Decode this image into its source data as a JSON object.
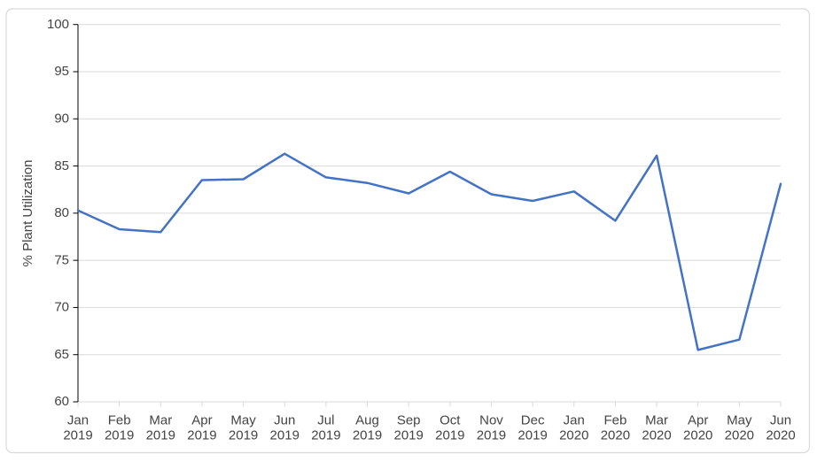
{
  "figure": {
    "background": "#FFFFFF",
    "border_color": "#D9D9D9"
  },
  "chart_data": {
    "type": "line",
    "title": "",
    "ylabel": "% Plant Utilization",
    "xlabel": "",
    "categories": [
      "Jan 2019",
      "Feb 2019",
      "Mar 2019",
      "Apr 2019",
      "May 2019",
      "Jun 2019",
      "Jul 2019",
      "Aug 2019",
      "Sep 2019",
      "Oct 2019",
      "Nov 2019",
      "Dec 2019",
      "Jan 2020",
      "Feb 2020",
      "Mar 2020",
      "Apr 2020",
      "May 2020",
      "Jun 2020"
    ],
    "values": [
      80.3,
      78.3,
      78.0,
      83.5,
      83.6,
      86.3,
      83.8,
      83.2,
      82.1,
      84.4,
      82.0,
      81.3,
      82.3,
      79.2,
      86.1,
      65.5,
      66.6,
      83.1
    ],
    "ylim": [
      60,
      100
    ],
    "yticks": [
      60,
      65,
      70,
      75,
      80,
      85,
      90,
      95,
      100
    ],
    "grid": "horizontal",
    "legend_position": "none",
    "colors": {
      "series": "#4472C4",
      "gridline": "#D9D9D9",
      "x_axis_line": "#D9D9D9",
      "y_axis_line": "#000000",
      "tick_label": "#444444"
    }
  }
}
